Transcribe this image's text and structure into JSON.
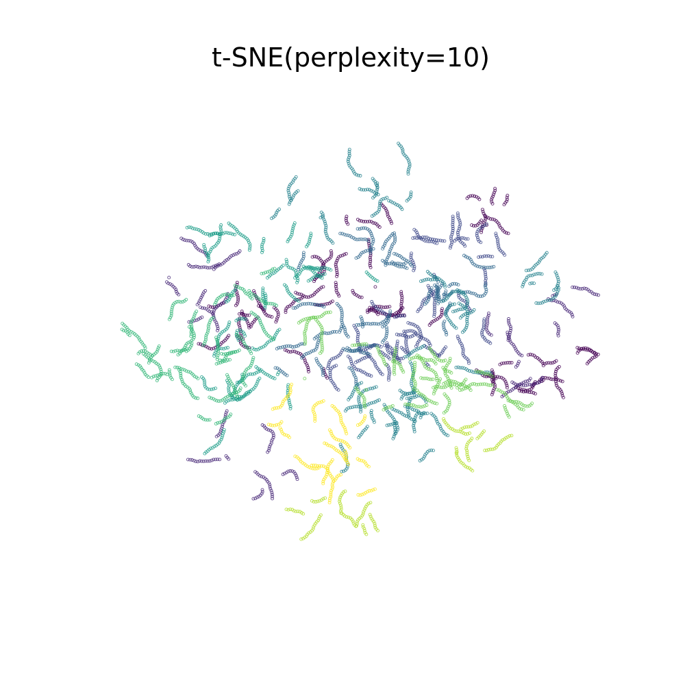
{
  "chart_data": {
    "type": "scatter",
    "title": "t-SNE(perplexity=10)",
    "axes_visible": false,
    "grid": false,
    "legend": "none",
    "xlim": [
      -110,
      110
    ],
    "ylim": [
      -110,
      110
    ],
    "colormap": "viridis",
    "marker": "hollow-circle",
    "palette": [
      "#440154",
      "#482878",
      "#3e4989",
      "#31688e",
      "#26828e",
      "#1f9e89",
      "#35b779",
      "#6ece58",
      "#b5de2b",
      "#fde725"
    ],
    "clusters": [
      {
        "color_index": 0,
        "center": [
          -40,
          12
        ],
        "spread": [
          12,
          6
        ],
        "count": 130
      },
      {
        "color_index": 0,
        "center": [
          10,
          18
        ],
        "spread": [
          14,
          5
        ],
        "count": 120
      },
      {
        "color_index": 0,
        "center": [
          62,
          58
        ],
        "spread": [
          4,
          8
        ],
        "count": 60
      },
      {
        "color_index": 0,
        "center": [
          10,
          53
        ],
        "spread": [
          8,
          3
        ],
        "count": 45
      },
      {
        "color_index": 0,
        "center": [
          -5,
          30
        ],
        "spread": [
          8,
          4
        ],
        "count": 50
      },
      {
        "color_index": 0,
        "center": [
          -15,
          -10
        ],
        "spread": [
          4,
          3
        ],
        "count": 25
      },
      {
        "color_index": 0,
        "center": [
          64,
          -12
        ],
        "spread": [
          6,
          5
        ],
        "count": 55
      },
      {
        "color_index": 0,
        "center": [
          92,
          -6
        ],
        "spread": [
          8,
          6
        ],
        "count": 70
      },
      {
        "color_index": 0,
        "center": [
          78,
          -22
        ],
        "spread": [
          5,
          5
        ],
        "count": 40
      },
      {
        "color_index": 1,
        "center": [
          -72,
          25
        ],
        "spread": [
          7,
          6
        ],
        "count": 65
      },
      {
        "color_index": 1,
        "center": [
          -75,
          40
        ],
        "spread": [
          5,
          8
        ],
        "count": 45
      },
      {
        "color_index": 1,
        "center": [
          -36,
          -58
        ],
        "spread": [
          6,
          6
        ],
        "count": 55
      },
      {
        "color_index": 1,
        "center": [
          -58,
          -44
        ],
        "spread": [
          4,
          6
        ],
        "count": 35
      },
      {
        "color_index": 1,
        "center": [
          92,
          14
        ],
        "spread": [
          6,
          6
        ],
        "count": 45
      },
      {
        "color_index": 1,
        "center": [
          68,
          5
        ],
        "spread": [
          5,
          5
        ],
        "count": 40
      },
      {
        "color_index": 1,
        "center": [
          78,
          -10
        ],
        "spread": [
          6,
          6
        ],
        "count": 40
      },
      {
        "color_index": 2,
        "center": [
          30,
          2
        ],
        "spread": [
          14,
          10
        ],
        "count": 190
      },
      {
        "color_index": 2,
        "center": [
          8,
          -2
        ],
        "spread": [
          10,
          8
        ],
        "count": 120
      },
      {
        "color_index": 2,
        "center": [
          40,
          38
        ],
        "spread": [
          12,
          10
        ],
        "count": 150
      },
      {
        "color_index": 3,
        "center": [
          -2,
          2
        ],
        "spread": [
          12,
          10
        ],
        "count": 180
      },
      {
        "color_index": 3,
        "center": [
          40,
          20
        ],
        "spread": [
          10,
          8
        ],
        "count": 130
      },
      {
        "color_index": 3,
        "center": [
          5,
          40
        ],
        "spread": [
          12,
          6
        ],
        "count": 110
      },
      {
        "color_index": 4,
        "center": [
          20,
          -28
        ],
        "spread": [
          12,
          10
        ],
        "count": 150
      },
      {
        "color_index": 4,
        "center": [
          48,
          15
        ],
        "spread": [
          10,
          10
        ],
        "count": 130
      },
      {
        "color_index": 4,
        "center": [
          10,
          70
        ],
        "spread": [
          12,
          4
        ],
        "count": 90
      },
      {
        "color_index": 4,
        "center": [
          -30,
          62
        ],
        "spread": [
          6,
          4
        ],
        "count": 50
      },
      {
        "color_index": 4,
        "center": [
          90,
          32
        ],
        "spread": [
          6,
          8
        ],
        "count": 60
      },
      {
        "color_index": 4,
        "center": [
          28,
          -38
        ],
        "spread": [
          10,
          8
        ],
        "count": 90
      },
      {
        "color_index": 5,
        "center": [
          -40,
          -20
        ],
        "spread": [
          12,
          10
        ],
        "count": 140
      },
      {
        "color_index": 5,
        "center": [
          -25,
          35
        ],
        "spread": [
          14,
          8
        ],
        "count": 140
      },
      {
        "color_index": 5,
        "center": [
          -55,
          50
        ],
        "spread": [
          7,
          7
        ],
        "count": 80
      },
      {
        "color_index": 5,
        "center": [
          -48,
          10
        ],
        "spread": [
          5,
          8
        ],
        "count": 60
      },
      {
        "color_index": 6,
        "center": [
          -78,
          -5
        ],
        "spread": [
          14,
          12
        ],
        "count": 220
      },
      {
        "color_index": 6,
        "center": [
          -48,
          -5
        ],
        "spread": [
          10,
          16
        ],
        "count": 170
      },
      {
        "color_index": 7,
        "center": [
          -25,
          0
        ],
        "spread": [
          7,
          7
        ],
        "count": 55
      },
      {
        "color_index": 7,
        "center": [
          25,
          -20
        ],
        "spread": [
          16,
          10
        ],
        "count": 230
      },
      {
        "color_index": 7,
        "center": [
          62,
          -18
        ],
        "spread": [
          8,
          8
        ],
        "count": 70
      },
      {
        "color_index": 8,
        "center": [
          53,
          -45
        ],
        "spread": [
          10,
          5
        ],
        "count": 80
      },
      {
        "color_index": 8,
        "center": [
          -2,
          -78
        ],
        "spread": [
          12,
          5
        ],
        "count": 90
      },
      {
        "color_index": 9,
        "center": [
          -22,
          -35
        ],
        "spread": [
          7,
          6
        ],
        "count": 80
      },
      {
        "color_index": 9,
        "center": [
          -2,
          -55
        ],
        "spread": [
          8,
          8
        ],
        "count": 110
      }
    ]
  }
}
